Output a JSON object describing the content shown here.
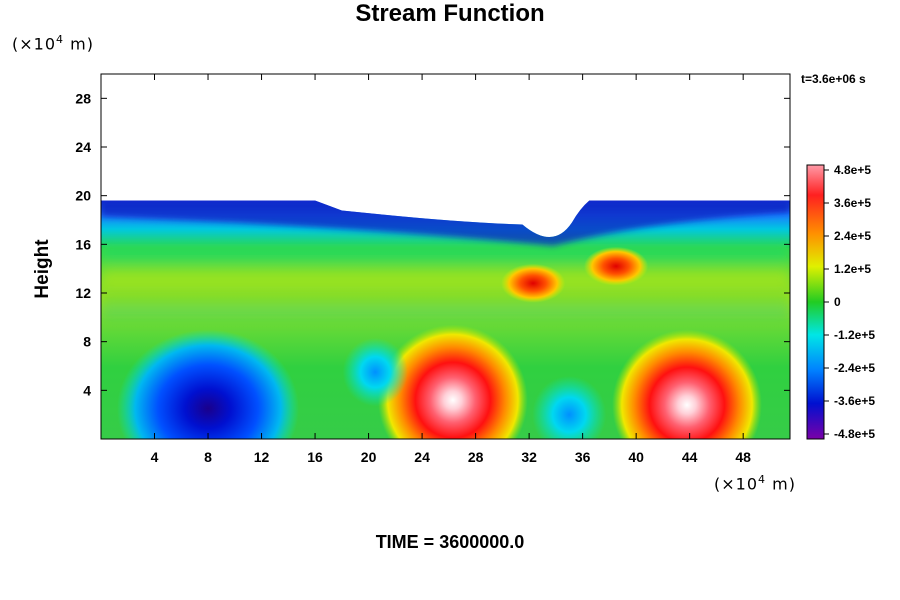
{
  "chart_data": {
    "type": "heatmap",
    "title": "Stream Function",
    "ylabel": "Height",
    "xlabel": "",
    "x_unit_prefix": "(×10",
    "x_unit_exp": "4",
    "x_unit_suffix": " m)",
    "y_unit_prefix": "(×10",
    "y_unit_exp": "4",
    "y_unit_suffix": " m)",
    "time_label": "t=3.6e+06 s",
    "footer": "TIME = 3600000.0",
    "xlim": [
      0,
      51.5
    ],
    "ylim": [
      0,
      30
    ],
    "x_ticks": [
      4,
      8,
      12,
      16,
      20,
      24,
      28,
      32,
      36,
      40,
      44,
      48
    ],
    "x_tick_labels": [
      "4",
      "8",
      "12",
      "16",
      "20",
      "24",
      "28",
      "32",
      "36",
      "40",
      "44",
      "48"
    ],
    "y_ticks": [
      4,
      8,
      12,
      16,
      20,
      24,
      28
    ],
    "y_tick_labels": [
      "4",
      "8",
      "12",
      "16",
      "20",
      "24",
      "28"
    ],
    "colorbar": {
      "min": -480000,
      "max": 480000,
      "ticks": [
        480000,
        360000,
        240000,
        120000,
        0,
        -120000,
        -240000,
        -360000,
        -480000
      ],
      "labels": [
        "4.8e+5",
        "3.6e+5",
        "2.4e+5",
        "1.2e+5",
        "0",
        "-1.2e+5",
        "-2.4e+5",
        "-3.6e+5",
        "-4.8e+5"
      ]
    },
    "colors": {
      "high": "#ff9aa8",
      "red": "#ff1a1a",
      "orange": "#ff9900",
      "yellow": "#e6f000",
      "green": "#22cc22",
      "cyan": "#00e6e6",
      "blue": "#0033ff",
      "purple": "#7a00a8"
    },
    "domain_top": 19.6,
    "features": [
      {
        "kind": "extremum",
        "x": 8,
        "y": 2.5,
        "value": -480000
      },
      {
        "kind": "extremum",
        "x": 26.3,
        "y": 3.2,
        "value": 480000
      },
      {
        "kind": "extremum",
        "x": 43.8,
        "y": 2.8,
        "value": 480000
      },
      {
        "kind": "extremum",
        "x": 20.5,
        "y": 5.5,
        "value": -150000
      },
      {
        "kind": "extremum",
        "x": 35,
        "y": 2,
        "value": -170000
      },
      {
        "kind": "extremum",
        "x": 38.5,
        "y": 14.2,
        "value": 400000
      },
      {
        "kind": "extremum",
        "x": 32.3,
        "y": 12.8,
        "value": 330000
      }
    ]
  }
}
